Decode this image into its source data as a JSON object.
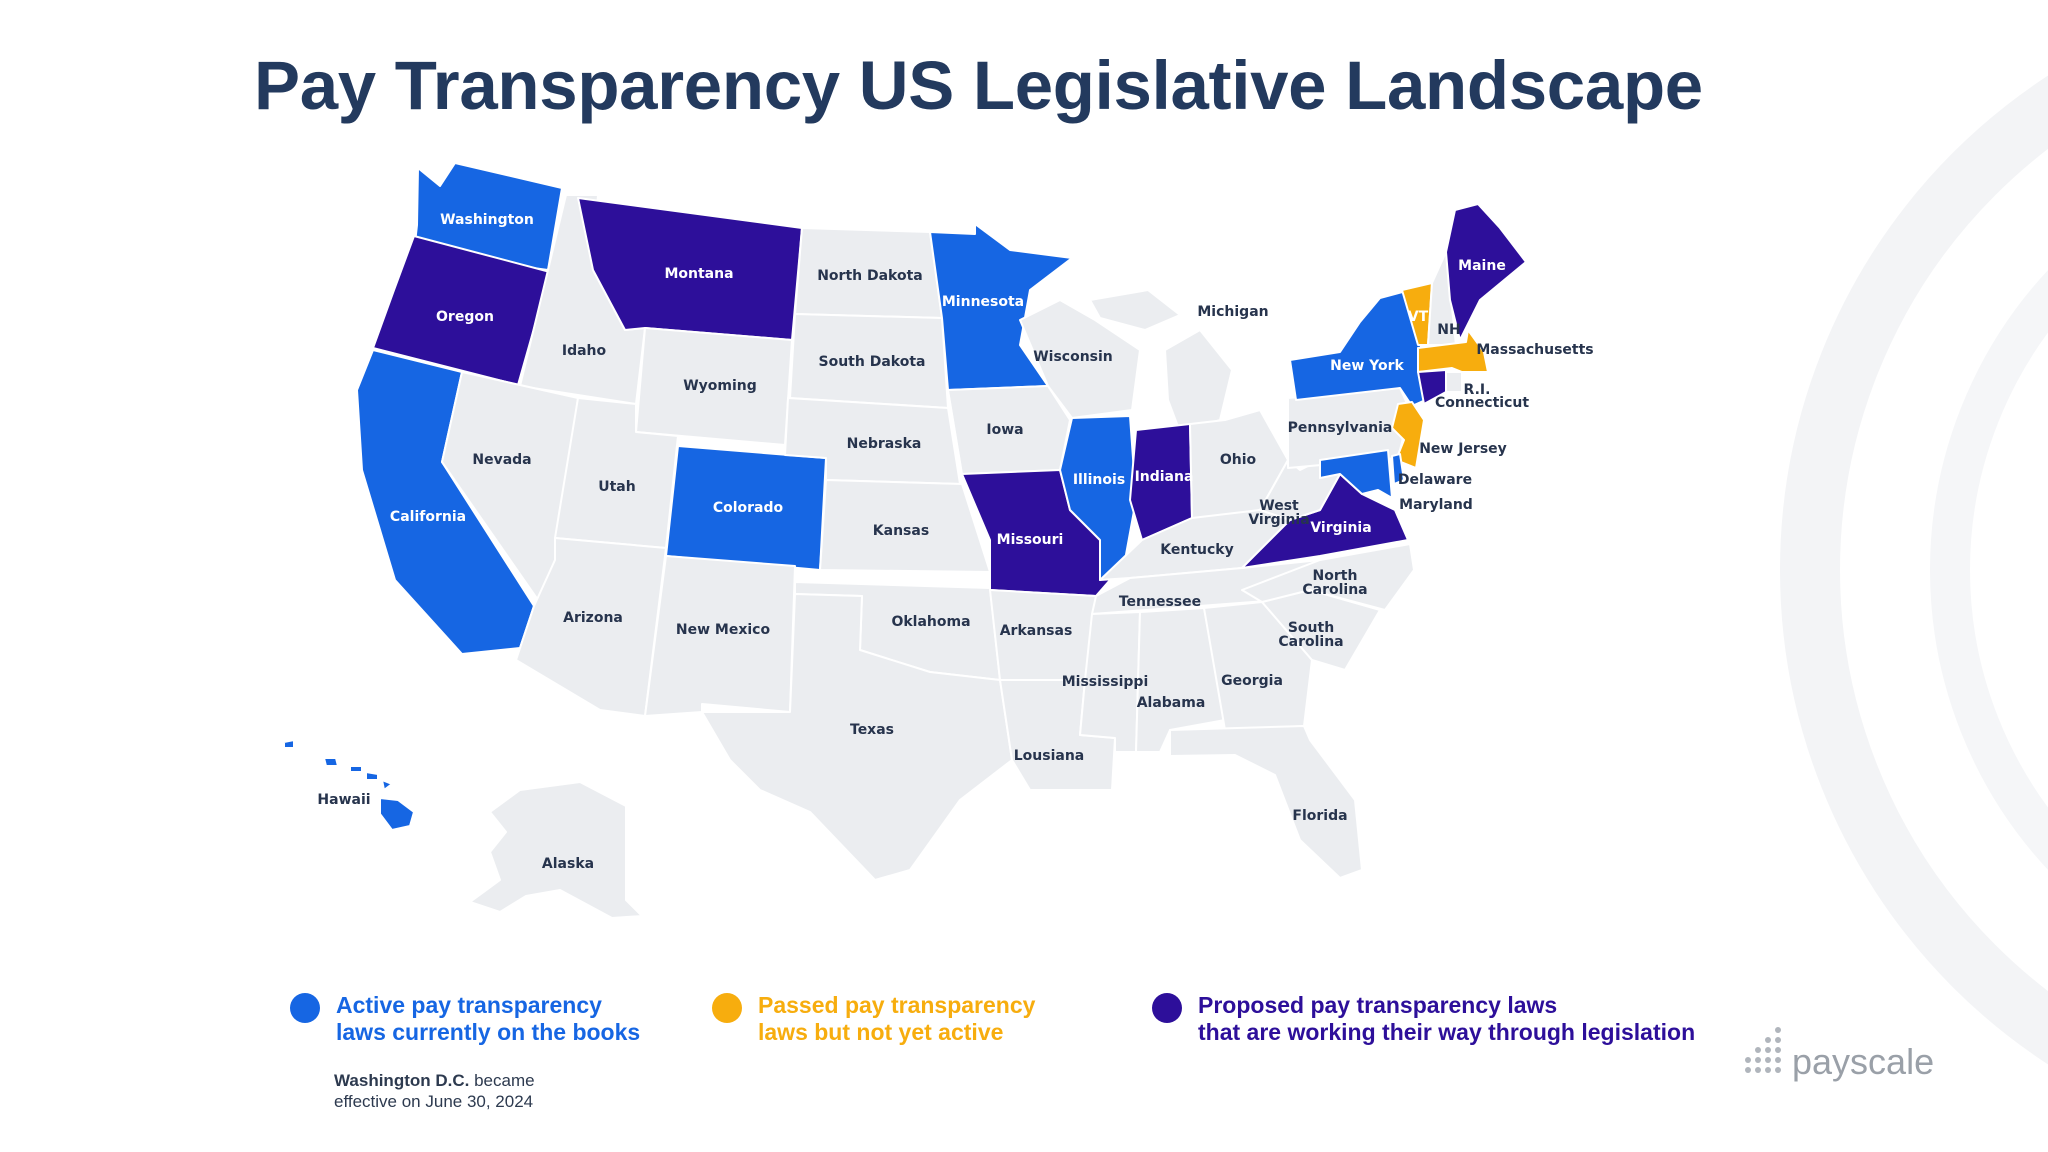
{
  "title": "Pay Transparency US Legislative Landscape",
  "colors": {
    "active": "#1666e3",
    "passed": "#f7ad0e",
    "proposed": "#2d0f9a",
    "none": "#ebedf0",
    "title": "#233a5e"
  },
  "states": {
    "washington": {
      "label": "Washington",
      "status": "active"
    },
    "oregon": {
      "label": "Oregon",
      "status": "proposed"
    },
    "california": {
      "label": "California",
      "status": "active"
    },
    "idaho": {
      "label": "Idaho",
      "status": "none"
    },
    "nevada": {
      "label": "Nevada",
      "status": "none"
    },
    "montana": {
      "label": "Montana",
      "status": "proposed"
    },
    "wyoming": {
      "label": "Wyoming",
      "status": "none"
    },
    "utah": {
      "label": "Utah",
      "status": "none"
    },
    "arizona": {
      "label": "Arizona",
      "status": "none"
    },
    "colorado": {
      "label": "Colorado",
      "status": "active"
    },
    "new_mexico": {
      "label": "New Mexico",
      "status": "none"
    },
    "north_dakota": {
      "label": "North Dakota",
      "status": "none"
    },
    "south_dakota": {
      "label": "South Dakota",
      "status": "none"
    },
    "nebraska": {
      "label": "Nebraska",
      "status": "none"
    },
    "kansas": {
      "label": "Kansas",
      "status": "none"
    },
    "oklahoma": {
      "label": "Oklahoma",
      "status": "none"
    },
    "texas": {
      "label": "Texas",
      "status": "none"
    },
    "minnesota": {
      "label": "Minnesota",
      "status": "active"
    },
    "iowa": {
      "label": "Iowa",
      "status": "none"
    },
    "missouri": {
      "label": "Missouri",
      "status": "proposed"
    },
    "arkansas": {
      "label": "Arkansas",
      "status": "none"
    },
    "louisiana": {
      "label": "Lousiana",
      "status": "none"
    },
    "wisconsin": {
      "label": "Wisconsin",
      "status": "none"
    },
    "illinois": {
      "label": "Illinois",
      "status": "active"
    },
    "michigan": {
      "label": "Michigan",
      "status": "none"
    },
    "indiana": {
      "label": "Indiana",
      "status": "proposed"
    },
    "ohio": {
      "label": "Ohio",
      "status": "none"
    },
    "kentucky": {
      "label": "Kentucky",
      "status": "none"
    },
    "tennessee": {
      "label": "Tennessee",
      "status": "none"
    },
    "mississippi": {
      "label": "Mississippi",
      "status": "none"
    },
    "alabama": {
      "label": "Alabama",
      "status": "none"
    },
    "georgia": {
      "label": "Georgia",
      "status": "none"
    },
    "florida": {
      "label": "Florida",
      "status": "none"
    },
    "south_carolina": {
      "label_line1": "South",
      "label_line2": "Carolina",
      "status": "none"
    },
    "north_carolina": {
      "label_line1": "North",
      "label_line2": "Carolina",
      "status": "none"
    },
    "virginia": {
      "label": "Virginia",
      "status": "proposed"
    },
    "west_virginia": {
      "label_line1": "West",
      "label_line2": "Virginia",
      "status": "none"
    },
    "pennsylvania": {
      "label": "Pennsylvania",
      "status": "none"
    },
    "new_york": {
      "label": "New York",
      "status": "active"
    },
    "vermont": {
      "label": "VT",
      "status": "passed"
    },
    "new_hampshire": {
      "label": "NH",
      "status": "none"
    },
    "maine": {
      "label": "Maine",
      "status": "proposed"
    },
    "massachusetts": {
      "label": "Massachusetts",
      "status": "passed"
    },
    "rhode_island": {
      "label": "R.I.",
      "status": "none"
    },
    "connecticut": {
      "label": "Connecticut",
      "status": "proposed"
    },
    "new_jersey": {
      "label": "New Jersey",
      "status": "passed"
    },
    "delaware": {
      "label": "Delaware",
      "status": "active"
    },
    "maryland": {
      "label": "Maryland",
      "status": "active"
    },
    "hawaii": {
      "label": "Hawaii",
      "status": "active"
    },
    "alaska": {
      "label": "Alaska",
      "status": "none"
    }
  },
  "legend": {
    "active": {
      "line1": "Active pay transparency",
      "line2": "laws currently on the books"
    },
    "passed": {
      "line1": "Passed pay transparency",
      "line2": "laws but not yet active"
    },
    "proposed": {
      "line1": "Proposed pay transparency laws",
      "line2": "that are working their way through legislation"
    }
  },
  "note": {
    "bold": "Washington D.C.",
    "rest": " became",
    "line2": "effective on June 30, 2024"
  },
  "brand": {
    "name": "payscale",
    "icon": "payscale-dots-icon"
  }
}
